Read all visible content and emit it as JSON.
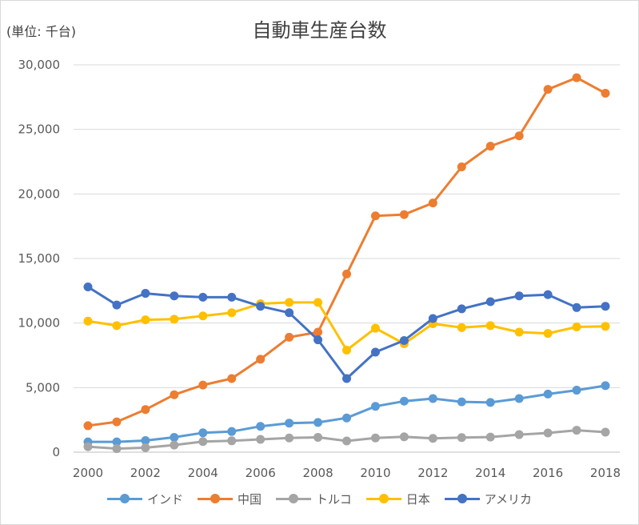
{
  "chart_data": {
    "type": "line",
    "title": "自動車生産台数",
    "unit_label": "(単位: 千台)",
    "ylim": [
      0,
      30000
    ],
    "y_ticks": [
      "0",
      "5,000",
      "10,000",
      "15,000",
      "20,000",
      "25,000",
      "30,000"
    ],
    "y_tick_values": [
      0,
      5000,
      10000,
      15000,
      20000,
      25000,
      30000
    ],
    "x": [
      2000,
      2001,
      2002,
      2003,
      2004,
      2005,
      2006,
      2007,
      2008,
      2009,
      2010,
      2011,
      2012,
      2013,
      2014,
      2015,
      2016,
      2017,
      2018
    ],
    "x_tick_labels": [
      "2000",
      "2002",
      "2004",
      "2006",
      "2008",
      "2010",
      "2012",
      "2014",
      "2016",
      "2018"
    ],
    "x_tick_values": [
      2000,
      2002,
      2004,
      2006,
      2008,
      2010,
      2012,
      2014,
      2016,
      2018
    ],
    "grid": "horizontal",
    "legend_position": "bottom",
    "series": [
      {
        "name": "インド",
        "color": "#5b9bd5",
        "values": [
          800,
          800,
          900,
          1150,
          1500,
          1600,
          2000,
          2250,
          2300,
          2650,
          3550,
          3950,
          4150,
          3900,
          3850,
          4150,
          4500,
          4800,
          5150
        ]
      },
      {
        "name": "中国",
        "color": "#ed7d31",
        "values": [
          2050,
          2350,
          3300,
          4450,
          5200,
          5700,
          7200,
          8900,
          9300,
          13800,
          18300,
          18400,
          19300,
          22100,
          23700,
          24500,
          28100,
          29000,
          27800
        ]
      },
      {
        "name": "トルコ",
        "color": "#a5a5a5",
        "values": [
          430,
          270,
          350,
          550,
          820,
          880,
          990,
          1100,
          1150,
          870,
          1100,
          1190,
          1070,
          1130,
          1170,
          1360,
          1490,
          1700,
          1550
        ]
      },
      {
        "name": "日本",
        "color": "#ffc000",
        "values": [
          10150,
          9800,
          10250,
          10300,
          10550,
          10800,
          11500,
          11600,
          11600,
          7900,
          9600,
          8400,
          9950,
          9650,
          9800,
          9300,
          9200,
          9700,
          9750
        ]
      },
      {
        "name": "アメリカ",
        "color": "#4472c4",
        "values": [
          12800,
          11400,
          12300,
          12100,
          12000,
          12000,
          11300,
          10800,
          8700,
          5700,
          7750,
          8650,
          10350,
          11100,
          11650,
          12100,
          12200,
          11200,
          11300
        ]
      }
    ]
  }
}
